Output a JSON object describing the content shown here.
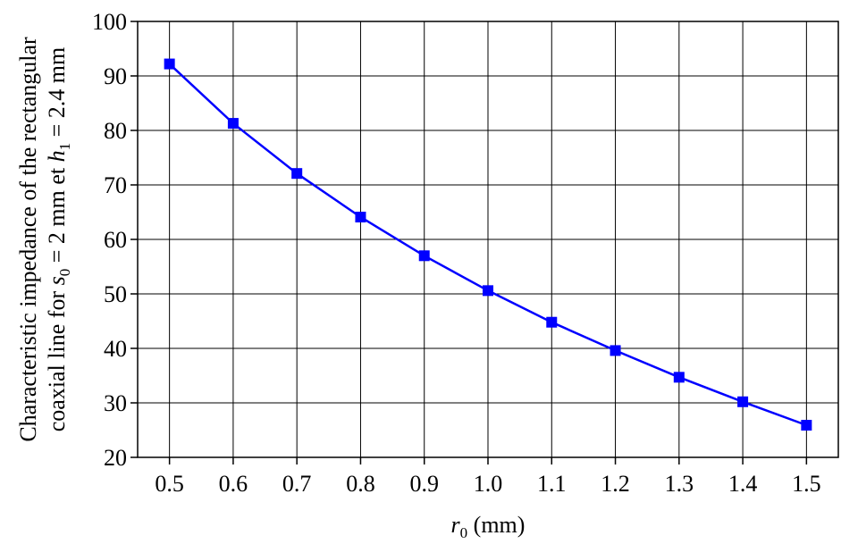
{
  "chart_data": {
    "type": "line",
    "xlabel": {
      "var": "r",
      "sub": "0",
      "unit": " (mm)"
    },
    "ylabel": {
      "line1": "Characteristic impedance of the rectangular",
      "line2": {
        "pre": "coaxial line for ",
        "var1": "s",
        "sub1": "0",
        "mid": " = 2 mm et ",
        "var2": "h",
        "sub2": "1",
        "post": " = 2.4 mm"
      }
    },
    "xlim": [
      0.45,
      1.55
    ],
    "ylim": [
      20,
      100
    ],
    "x_ticks": [
      "0.5",
      "0.6",
      "0.7",
      "0.8",
      "0.9",
      "1.0",
      "1.1",
      "1.2",
      "1.3",
      "1.4",
      "1.5"
    ],
    "y_ticks": [
      "20",
      "30",
      "40",
      "50",
      "60",
      "70",
      "80",
      "90",
      "100"
    ],
    "grid": true,
    "series": [
      {
        "color": "#0000ff",
        "marker": "square",
        "x": [
          0.5,
          0.6,
          0.7,
          0.8,
          0.9,
          1.0,
          1.1,
          1.2,
          1.3,
          1.4,
          1.5
        ],
        "y": [
          92.2,
          81.3,
          72.1,
          64.1,
          57.0,
          50.6,
          44.8,
          39.6,
          34.7,
          30.2,
          25.9
        ]
      }
    ]
  }
}
